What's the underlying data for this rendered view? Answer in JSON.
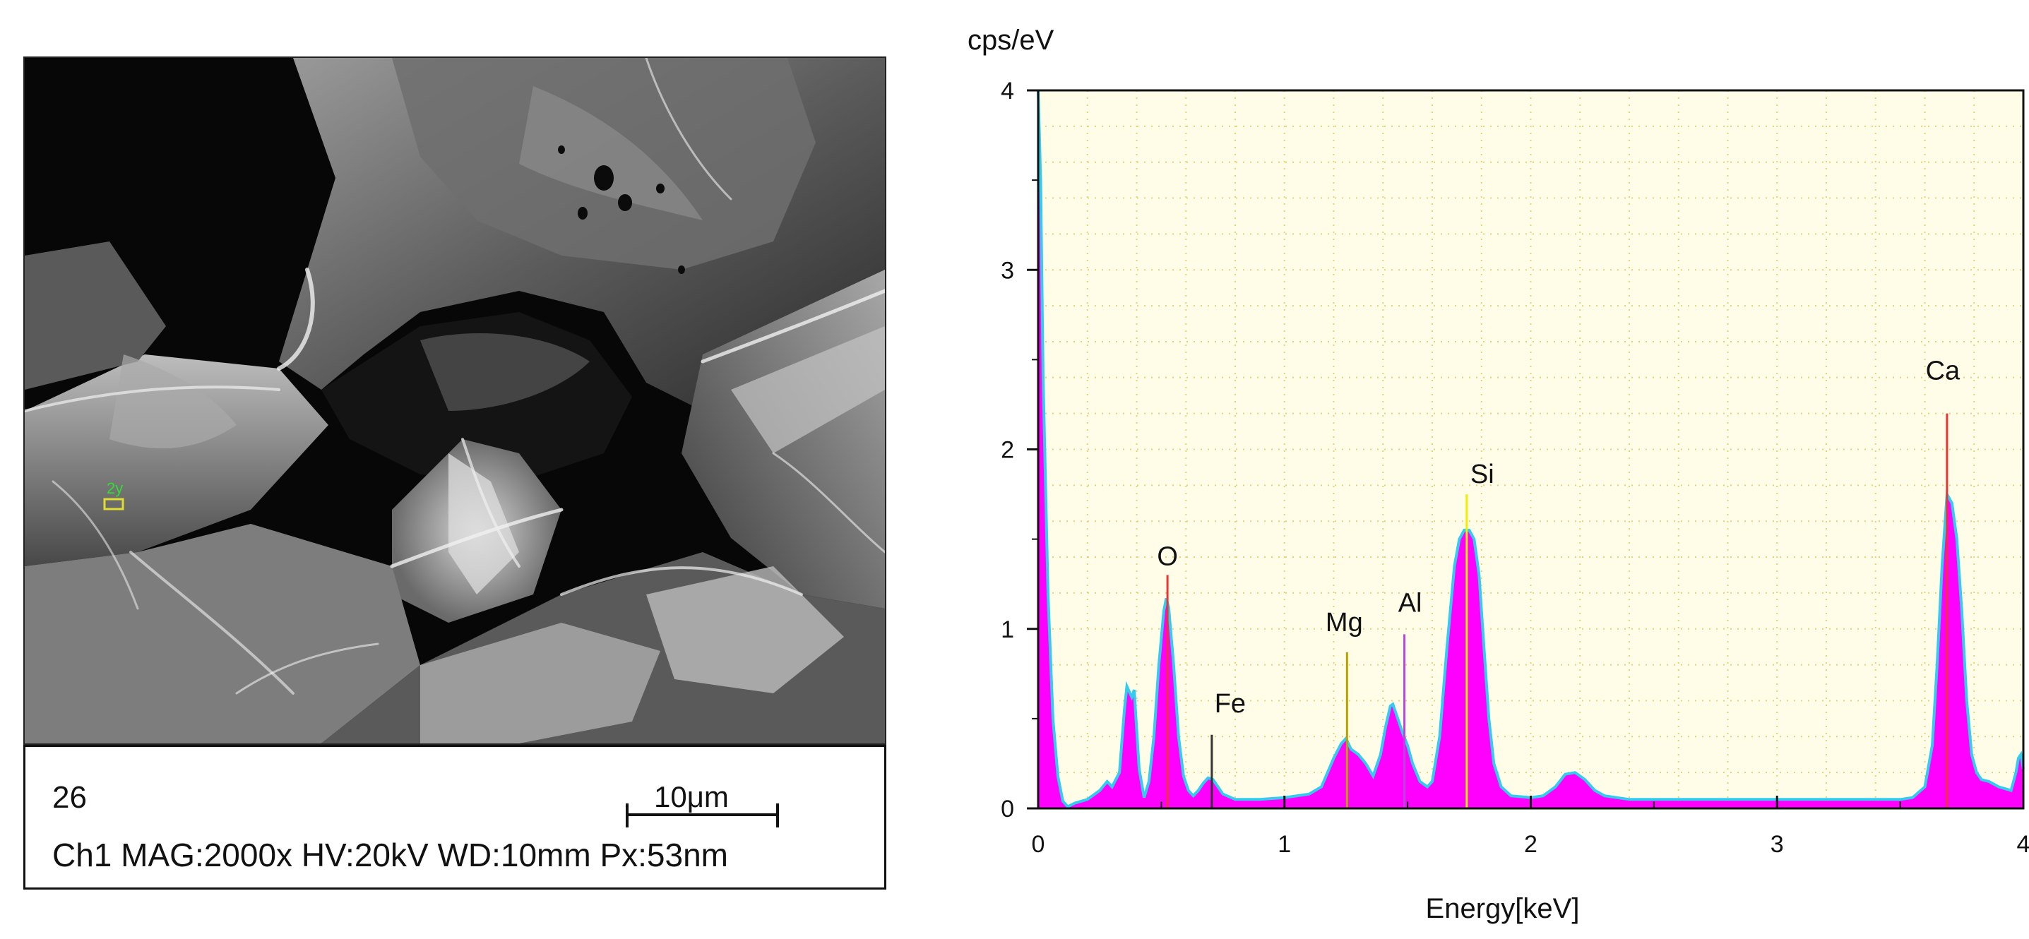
{
  "sem": {
    "frame_id": "26",
    "params": "Ch1  MAG:2000x HV:20kV WD:10mm Px:53nm",
    "scale_label": "10μm",
    "marker_label": "2y"
  },
  "chart_data": {
    "type": "area",
    "ylabel": "cps/eV",
    "xlabel": "Energy[keV]",
    "xlim": [
      0,
      4
    ],
    "ylim": [
      0,
      4
    ],
    "x_ticks": [
      0,
      1,
      2,
      3,
      4
    ],
    "y_ticks": [
      0,
      1,
      2,
      3,
      4
    ],
    "grid": true,
    "colors": {
      "fill": "#ff00ff",
      "outline": "#33ccee",
      "grid": "#e6d27a",
      "background": "#fffde8"
    },
    "peaks": [
      {
        "label": "O",
        "x": 0.525,
        "y": 1.3,
        "color": "#ee3333"
      },
      {
        "label": "Fe",
        "x": 0.705,
        "y": 0.41,
        "color": "#333333"
      },
      {
        "label": "Mg",
        "x": 1.254,
        "y": 0.87,
        "color": "#b8a000"
      },
      {
        "label": "Al",
        "x": 1.487,
        "y": 0.97,
        "color": "#bb44dd"
      },
      {
        "label": "Si",
        "x": 1.74,
        "y": 1.75,
        "color": "#eeee00"
      },
      {
        "label": "Ca",
        "x": 3.69,
        "y": 2.2,
        "color": "#ee3333"
      }
    ],
    "spectrum": {
      "x": [
        0.0,
        0.01,
        0.02,
        0.04,
        0.06,
        0.08,
        0.1,
        0.12,
        0.15,
        0.2,
        0.25,
        0.28,
        0.3,
        0.33,
        0.35,
        0.36,
        0.37,
        0.38,
        0.39,
        0.41,
        0.43,
        0.45,
        0.47,
        0.49,
        0.51,
        0.52,
        0.53,
        0.55,
        0.57,
        0.59,
        0.61,
        0.63,
        0.65,
        0.67,
        0.69,
        0.71,
        0.73,
        0.75,
        0.8,
        0.9,
        1.0,
        1.1,
        1.15,
        1.2,
        1.23,
        1.25,
        1.27,
        1.3,
        1.33,
        1.36,
        1.39,
        1.41,
        1.43,
        1.44,
        1.46,
        1.48,
        1.5,
        1.52,
        1.55,
        1.58,
        1.6,
        1.63,
        1.66,
        1.69,
        1.71,
        1.73,
        1.75,
        1.77,
        1.79,
        1.81,
        1.83,
        1.85,
        1.88,
        1.92,
        2.0,
        2.05,
        2.1,
        2.14,
        2.18,
        2.22,
        2.26,
        2.3,
        2.4,
        2.6,
        2.8,
        3.0,
        3.2,
        3.4,
        3.5,
        3.55,
        3.6,
        3.63,
        3.65,
        3.67,
        3.69,
        3.71,
        3.73,
        3.75,
        3.77,
        3.79,
        3.81,
        3.83,
        3.86,
        3.9,
        3.95,
        3.97,
        3.98,
        3.99,
        4.0
      ],
      "y": [
        4.0,
        3.5,
        2.4,
        1.2,
        0.5,
        0.18,
        0.04,
        0.01,
        0.03,
        0.05,
        0.1,
        0.15,
        0.12,
        0.2,
        0.55,
        0.68,
        0.65,
        0.62,
        0.66,
        0.22,
        0.06,
        0.15,
        0.4,
        0.8,
        1.1,
        1.17,
        1.12,
        0.8,
        0.4,
        0.18,
        0.1,
        0.07,
        0.1,
        0.14,
        0.17,
        0.16,
        0.12,
        0.08,
        0.05,
        0.05,
        0.06,
        0.08,
        0.12,
        0.28,
        0.36,
        0.39,
        0.33,
        0.3,
        0.25,
        0.18,
        0.3,
        0.45,
        0.57,
        0.58,
        0.5,
        0.42,
        0.35,
        0.25,
        0.15,
        0.12,
        0.15,
        0.4,
        0.9,
        1.35,
        1.5,
        1.55,
        1.55,
        1.5,
        1.3,
        0.9,
        0.5,
        0.25,
        0.12,
        0.07,
        0.06,
        0.07,
        0.12,
        0.19,
        0.2,
        0.16,
        0.1,
        0.07,
        0.05,
        0.05,
        0.05,
        0.05,
        0.05,
        0.05,
        0.05,
        0.06,
        0.12,
        0.35,
        0.8,
        1.35,
        1.75,
        1.7,
        1.5,
        1.1,
        0.6,
        0.3,
        0.2,
        0.16,
        0.15,
        0.12,
        0.1,
        0.2,
        0.28,
        0.3,
        0.22
      ]
    }
  }
}
